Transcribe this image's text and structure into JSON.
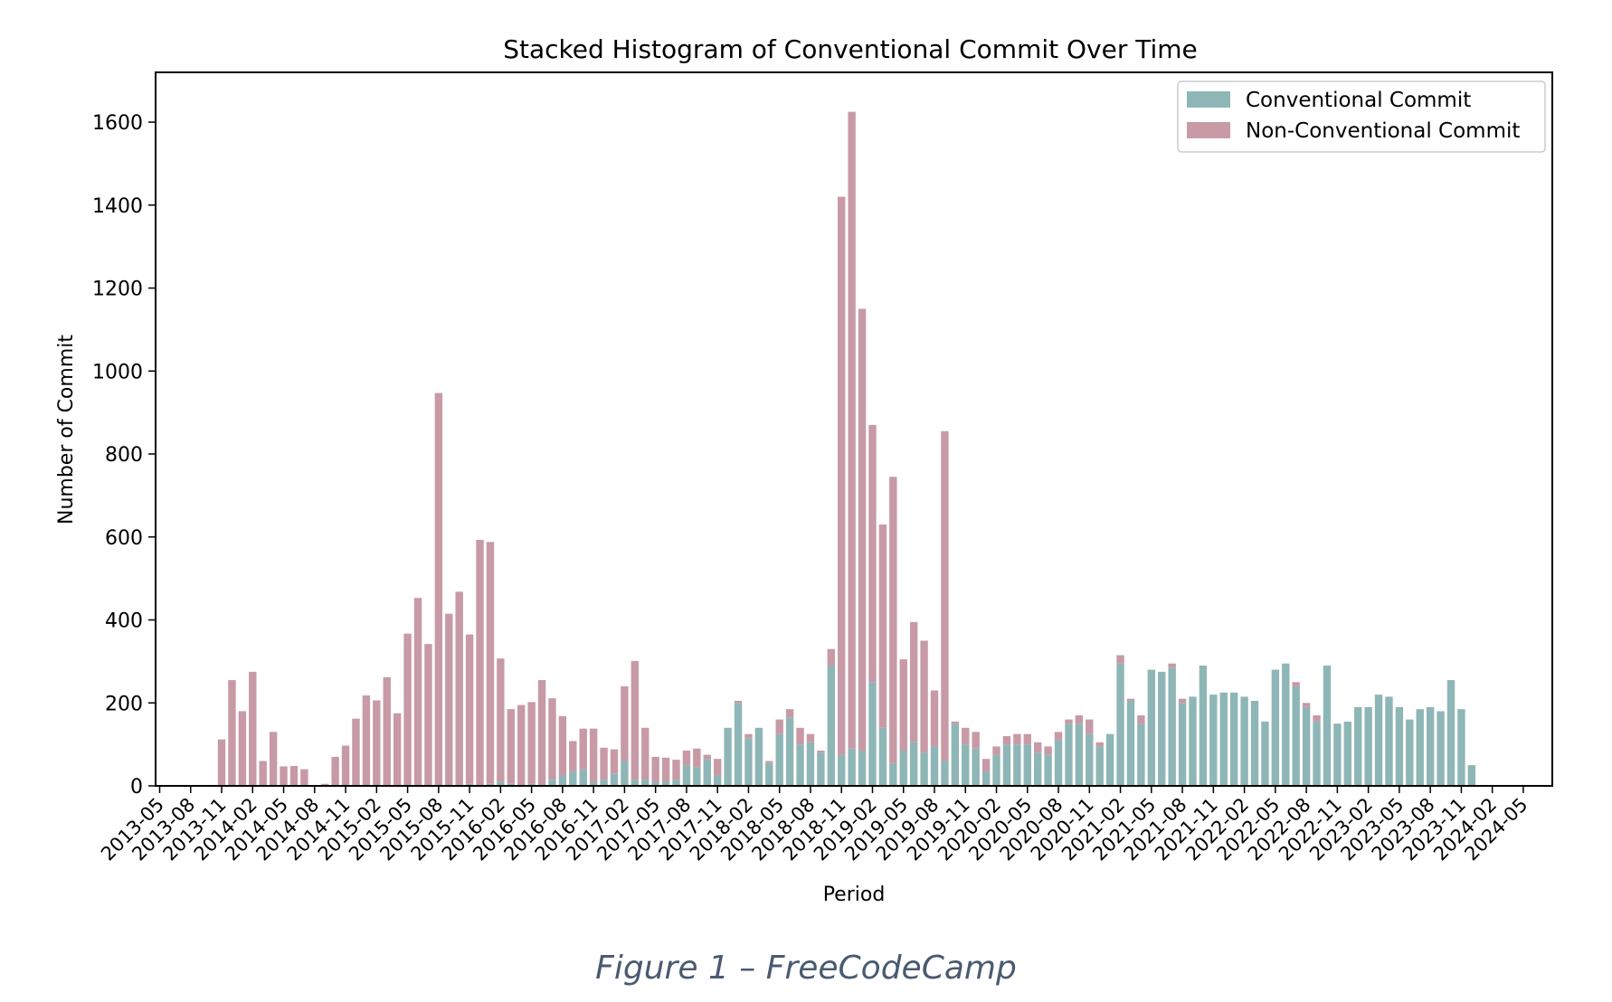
{
  "chart_data": {
    "type": "bar",
    "stacked": true,
    "title": "Stacked Histogram of Conventional Commit Over Time",
    "xlabel": "Period",
    "ylabel": "Number of Commit",
    "ylim": [
      0,
      1720
    ],
    "yticks": [
      0,
      200,
      400,
      600,
      800,
      1000,
      1200,
      1400,
      1600
    ],
    "xticks": [
      "2013-05",
      "2013-08",
      "2013-11",
      "2014-02",
      "2014-05",
      "2014-08",
      "2014-11",
      "2015-02",
      "2015-05",
      "2015-08",
      "2015-11",
      "2016-02",
      "2016-05",
      "2016-08",
      "2016-11",
      "2017-02",
      "2017-05",
      "2017-08",
      "2017-11",
      "2018-02",
      "2018-05",
      "2018-08",
      "2018-11",
      "2019-02",
      "2019-05",
      "2019-08",
      "2019-11",
      "2020-02",
      "2020-05",
      "2020-08",
      "2020-11",
      "2021-02",
      "2021-05",
      "2021-08",
      "2021-11",
      "2022-02",
      "2022-05",
      "2022-08",
      "2022-11",
      "2023-02",
      "2023-05",
      "2023-08",
      "2023-11",
      "2024-02",
      "2024-05"
    ],
    "legend_position": "top-right",
    "grid": false,
    "first_period": "2013-11",
    "series": [
      {
        "name": "Conventional Commit",
        "color": "#8fb6b6",
        "values": [
          0,
          0,
          0,
          0,
          0,
          0,
          0,
          0,
          0,
          0,
          0,
          0,
          0,
          0,
          0,
          0,
          0,
          0,
          0,
          0,
          0,
          0,
          0,
          0,
          5,
          0,
          5,
          10,
          5,
          0,
          5,
          0,
          15,
          25,
          35,
          40,
          10,
          15,
          30,
          60,
          15,
          15,
          10,
          10,
          15,
          50,
          45,
          65,
          25,
          140,
          200,
          115,
          140,
          55,
          125,
          165,
          100,
          105,
          80,
          290,
          75,
          90,
          85,
          250,
          140,
          55,
          85,
          105,
          80,
          95,
          60,
          150,
          100,
          90,
          35,
          75,
          100,
          100,
          100,
          80,
          75,
          110,
          150,
          150,
          125,
          95,
          125,
          295,
          205,
          150,
          280,
          275,
          285,
          200,
          215,
          290,
          220,
          225,
          225,
          215,
          205,
          155,
          280,
          295,
          240,
          190,
          155,
          290,
          150,
          155,
          190,
          190,
          220,
          215,
          190,
          160,
          185,
          190,
          180,
          255,
          185,
          50
        ]
      },
      {
        "name": "Non-Conventional Commit",
        "color": "#c79aa6",
        "values": [
          112,
          255,
          180,
          275,
          60,
          130,
          47,
          48,
          40,
          2,
          5,
          70,
          97,
          162,
          218,
          206,
          262,
          175,
          367,
          453,
          342,
          947,
          415,
          468,
          360,
          593,
          583,
          297,
          180,
          195,
          197,
          255,
          196,
          143,
          73,
          98,
          128,
          77,
          58,
          180,
          286,
          125,
          60,
          58,
          48,
          35,
          45,
          10,
          40,
          0,
          5,
          10,
          0,
          5,
          35,
          20,
          40,
          20,
          5,
          40,
          1345,
          1535,
          1065,
          620,
          490,
          690,
          220,
          290,
          270,
          135,
          795,
          5,
          40,
          40,
          30,
          20,
          20,
          25,
          25,
          25,
          20,
          20,
          10,
          20,
          35,
          10,
          0,
          20,
          5,
          20,
          0,
          0,
          10,
          10,
          0,
          0,
          0,
          0,
          0,
          0,
          0,
          0,
          0,
          0,
          10,
          10,
          15,
          0,
          0,
          0,
          0,
          0,
          0,
          0,
          0,
          0,
          0,
          0,
          0,
          0,
          0,
          0,
          0
        ]
      }
    ]
  },
  "caption": "Figure 1 – FreeCodeCamp"
}
